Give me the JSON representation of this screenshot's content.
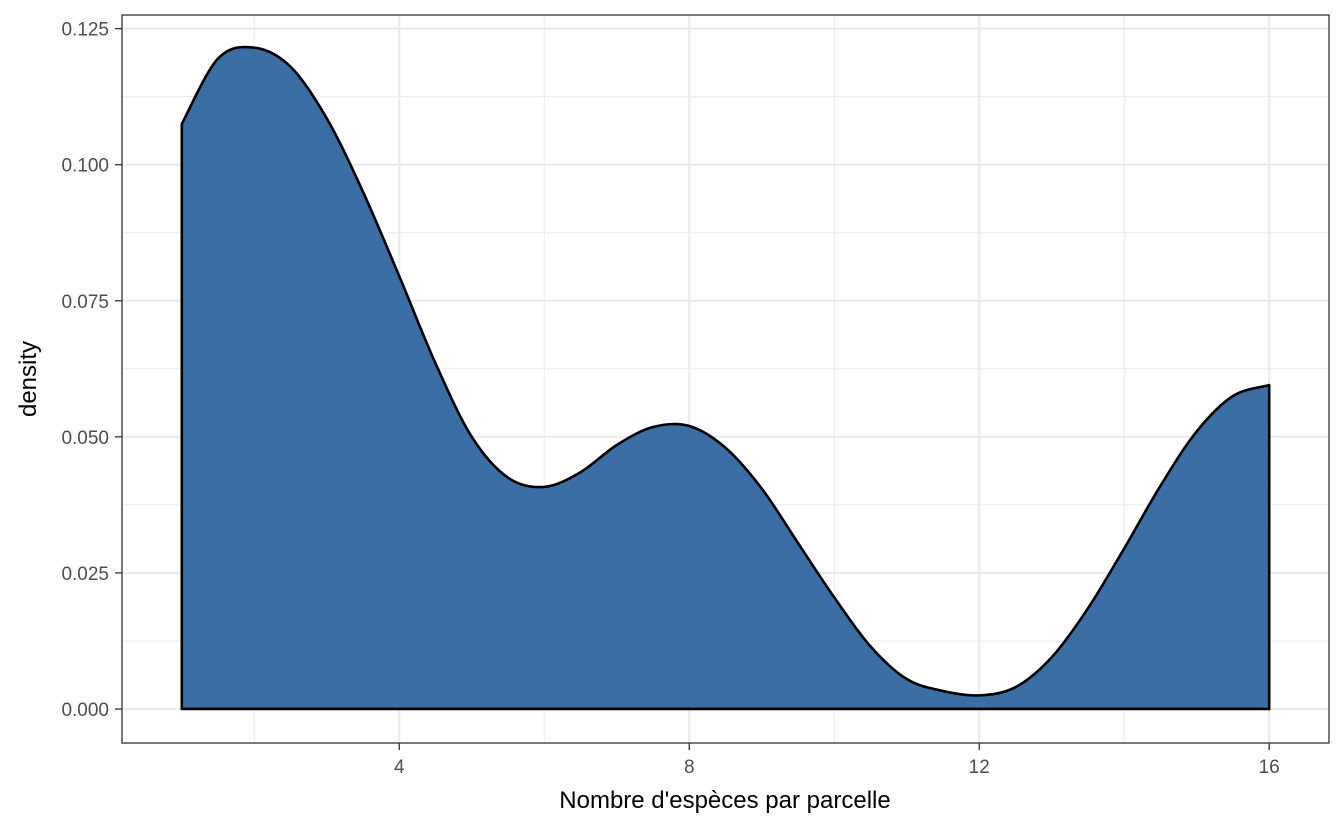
{
  "chart_data": {
    "type": "area",
    "subtype": "density",
    "title": "",
    "xlabel": "Nombre d'espèces par parcelle",
    "ylabel": "density",
    "xlim": [
      0.175,
      16.825
    ],
    "ylim": [
      -0.00625,
      0.1275
    ],
    "x_ticks": [
      4,
      8,
      12,
      16
    ],
    "x_tick_labels": [
      "4",
      "8",
      "12",
      "16"
    ],
    "y_ticks": [
      0,
      0.025,
      0.05,
      0.075,
      0.1,
      0.125
    ],
    "y_tick_labels": [
      "0.000",
      "0.025",
      "0.050",
      "0.075",
      "0.100",
      "0.125"
    ],
    "grid": true,
    "legend": "none",
    "colors": {
      "fill": "#3A6EA5",
      "outline": "#000000",
      "grid": "#EBEBEB",
      "panel_border": "#333333"
    },
    "series": [
      {
        "x": [
          1,
          1.5,
          2,
          2.5,
          3,
          3.5,
          4,
          4.5,
          5,
          5.5,
          6,
          6.5,
          7,
          7.5,
          8,
          8.5,
          9,
          9.5,
          10,
          10.5,
          11,
          11.5,
          12,
          12.5,
          13,
          13.5,
          14,
          14.5,
          15,
          15.5,
          16
        ],
        "y": [
          0.1075,
          0.1195,
          0.1215,
          0.118,
          0.1085,
          0.095,
          0.0795,
          0.0635,
          0.05,
          0.0425,
          0.0408,
          0.0435,
          0.0485,
          0.0518,
          0.052,
          0.048,
          0.0405,
          0.0305,
          0.0205,
          0.0115,
          0.0055,
          0.0033,
          0.0025,
          0.004,
          0.0095,
          0.0185,
          0.0295,
          0.041,
          0.051,
          0.0575,
          0.0595
        ]
      }
    ]
  }
}
